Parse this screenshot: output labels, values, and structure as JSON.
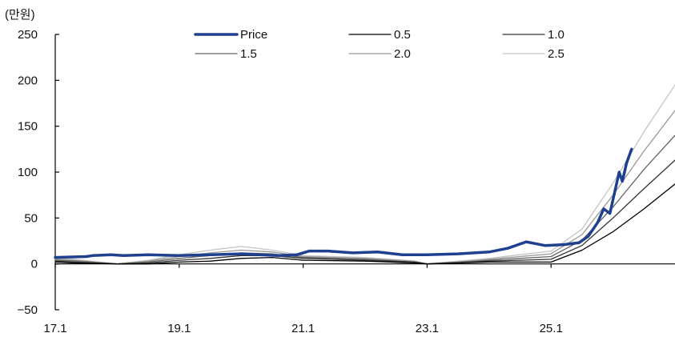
{
  "chart_data": {
    "type": "line",
    "title": "",
    "unit_label": "(만원)",
    "xlabel": "",
    "ylabel": "",
    "x_range": [
      2017.0,
      2027.0
    ],
    "ylim": [
      -50,
      250
    ],
    "y_ticks": [
      -50,
      0,
      50,
      100,
      150,
      200,
      250
    ],
    "y_tick_labels": [
      "−50",
      "0",
      "50",
      "100",
      "150",
      "200",
      "250"
    ],
    "x_ticks": [
      2017.0,
      2019.0,
      2021.0,
      2023.0,
      2025.0
    ],
    "x_tick_labels": [
      "17.1",
      "19.1",
      "21.1",
      "23.1",
      "25.1"
    ],
    "grid": false,
    "legend_position": "top-center",
    "series": [
      {
        "name": "Price",
        "color": "#1f3f8f",
        "width": 3.5,
        "x": [
          2017.0,
          2017.5,
          2017.6,
          2017.9,
          2018.1,
          2018.5,
          2019.0,
          2019.5,
          2020.0,
          2020.3,
          2020.6,
          2020.9,
          2021.1,
          2021.4,
          2021.8,
          2022.2,
          2022.6,
          2023.0,
          2023.5,
          2024.0,
          2024.3,
          2024.6,
          2024.9,
          2025.2,
          2025.45,
          2025.6,
          2025.75,
          2025.85,
          2025.95,
          2026.1,
          2026.15,
          2026.22,
          2026.3
        ],
        "values": [
          7,
          8,
          9,
          10,
          9,
          10,
          9,
          10,
          11,
          10,
          9,
          10,
          14,
          14,
          12,
          13,
          10,
          10,
          11,
          13,
          17,
          24,
          20,
          21,
          23,
          30,
          45,
          60,
          55,
          100,
          90,
          110,
          125
        ]
      },
      {
        "name": "0.5",
        "color": "#000000",
        "width": 1.3,
        "x": [
          2017.0,
          2017.3,
          2018.0,
          2018.5,
          2019.0,
          2019.5,
          2020.0,
          2020.5,
          2021.0,
          2022.0,
          2022.8,
          2023.0,
          2023.5,
          2024.0,
          2024.5,
          2025.0,
          2025.5,
          2026.0,
          2026.5,
          2027.0
        ],
        "values": [
          2,
          1,
          0,
          0,
          2,
          3,
          6,
          7,
          4,
          3,
          1,
          0,
          1,
          2,
          2,
          2,
          15,
          35,
          60,
          87
        ]
      },
      {
        "name": "1.0",
        "color": "#333333",
        "width": 1.3,
        "x": [
          2017.0,
          2017.3,
          2018.0,
          2018.5,
          2019.0,
          2019.5,
          2020.0,
          2020.5,
          2021.0,
          2022.0,
          2022.8,
          2023.0,
          2023.5,
          2024.0,
          2024.5,
          2025.0,
          2025.5,
          2026.0,
          2026.5,
          2027.0
        ],
        "values": [
          3,
          2,
          0,
          1,
          4,
          6,
          9,
          9,
          6,
          4,
          2,
          0,
          1,
          3,
          4,
          5,
          20,
          50,
          82,
          113
        ]
      },
      {
        "name": "1.5",
        "color": "#666666",
        "width": 1.3,
        "x": [
          2017.0,
          2017.3,
          2018.0,
          2018.5,
          2019.0,
          2019.5,
          2020.0,
          2020.5,
          2021.0,
          2022.0,
          2022.8,
          2023.0,
          2023.5,
          2024.0,
          2024.5,
          2025.0,
          2025.5,
          2026.0,
          2026.5,
          2027.0
        ],
        "values": [
          4,
          3,
          0,
          2,
          6,
          9,
          12,
          11,
          7,
          5,
          2,
          0,
          2,
          4,
          6,
          8,
          26,
          62,
          103,
          140
        ]
      },
      {
        "name": "2.0",
        "color": "#999999",
        "width": 1.3,
        "x": [
          2017.0,
          2017.3,
          2018.0,
          2018.5,
          2019.0,
          2019.5,
          2020.0,
          2020.5,
          2021.0,
          2022.0,
          2022.8,
          2023.0,
          2023.5,
          2024.0,
          2024.5,
          2025.0,
          2025.5,
          2026.0,
          2026.5,
          2027.0
        ],
        "values": [
          5,
          4,
          0,
          3,
          8,
          12,
          15,
          13,
          8,
          6,
          3,
          0,
          2,
          5,
          8,
          11,
          32,
          75,
          123,
          167
        ]
      },
      {
        "name": "2.5",
        "color": "#c4c4c4",
        "width": 1.3,
        "x": [
          2017.0,
          2017.3,
          2018.0,
          2018.5,
          2019.0,
          2019.5,
          2020.0,
          2020.5,
          2021.0,
          2022.0,
          2022.8,
          2023.0,
          2023.5,
          2024.0,
          2024.5,
          2025.0,
          2025.5,
          2026.0,
          2026.5,
          2027.0
        ],
        "values": [
          6,
          5,
          0,
          4,
          10,
          15,
          19,
          15,
          9,
          7,
          3,
          0,
          3,
          6,
          10,
          14,
          38,
          88,
          144,
          195
        ]
      }
    ]
  }
}
